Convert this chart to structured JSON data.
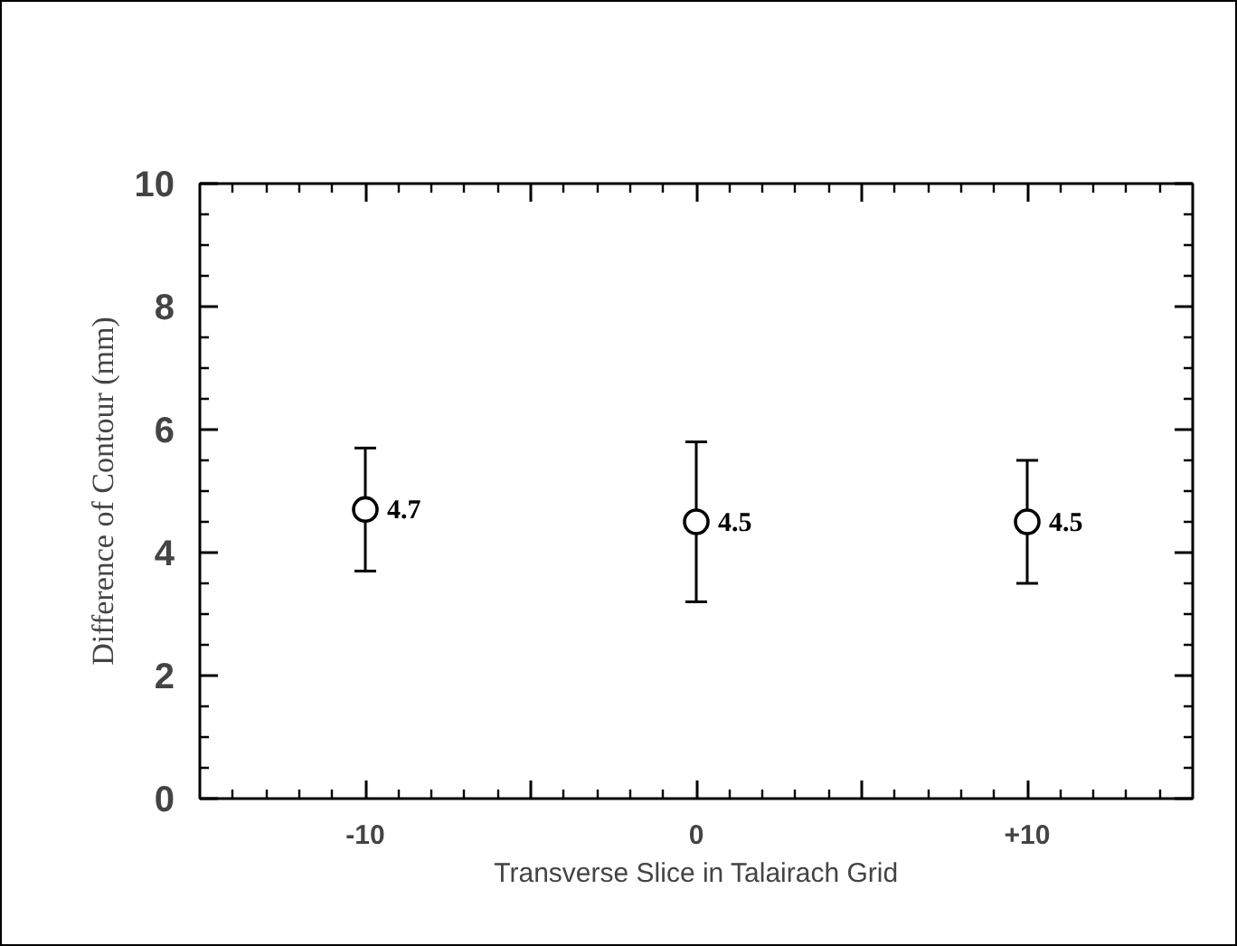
{
  "chart_data": {
    "type": "scatter",
    "xlabel": "Transverse Slice in Talairach Grid",
    "ylabel": "Difference of Contour (mm)",
    "x": [
      -10,
      0,
      10
    ],
    "series": [
      {
        "color": "#000000",
        "values": [
          4.7,
          4.5,
          4.5
        ],
        "errors": [
          1.0,
          1.3,
          1.0
        ]
      }
    ],
    "data_labels": true,
    "marker": "circle",
    "grid": false,
    "xlim": [
      -15,
      15
    ],
    "xticks": [
      -10,
      {
        "value": -5,
        "label": null
      },
      0,
      {
        "value": 5,
        "label": null
      },
      {
        "value": 10,
        "label": "+10"
      }
    ],
    "ylim": [
      0,
      10
    ],
    "yticks": [
      0,
      2,
      4,
      6,
      8,
      10
    ]
  }
}
